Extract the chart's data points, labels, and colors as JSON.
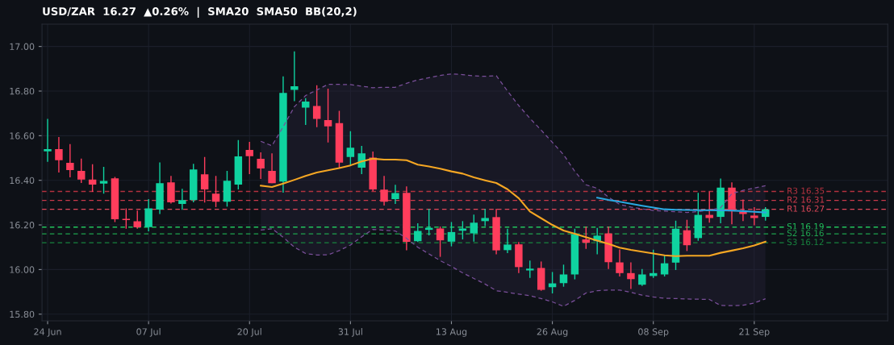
{
  "chart_data": {
    "type": "candlestick",
    "title": "USD/ZAR  16.27  ▲0.26%  |  SMA20  SMA50  BB(20,2)",
    "categories": [
      "24 Jun",
      null,
      null,
      null,
      null,
      null,
      null,
      null,
      null,
      "07 Jul",
      null,
      null,
      null,
      null,
      null,
      null,
      null,
      null,
      "20 Jul",
      null,
      null,
      null,
      null,
      null,
      null,
      null,
      null,
      "31 Jul",
      null,
      null,
      null,
      null,
      null,
      null,
      null,
      null,
      "13 Aug",
      null,
      null,
      null,
      null,
      null,
      null,
      null,
      null,
      "26 Aug",
      null,
      null,
      null,
      null,
      null,
      null,
      null,
      null,
      "08 Sep",
      null,
      null,
      null,
      null,
      null,
      null,
      null,
      null,
      "21 Sep",
      null
    ],
    "ohlc": [
      [
        16.53,
        16.675,
        16.483,
        16.54
      ],
      [
        16.54,
        16.594,
        16.435,
        16.49
      ],
      [
        16.478,
        16.562,
        16.413,
        16.446
      ],
      [
        16.442,
        16.497,
        16.388,
        16.403
      ],
      [
        16.403,
        16.472,
        16.348,
        16.381
      ],
      [
        16.385,
        16.46,
        16.34,
        16.397
      ],
      [
        16.409,
        16.415,
        16.213,
        16.225
      ],
      [
        16.227,
        16.274,
        16.183,
        16.222
      ],
      [
        16.216,
        16.264,
        16.183,
        16.189
      ],
      [
        16.19,
        16.316,
        16.171,
        16.274
      ],
      [
        16.269,
        16.48,
        16.249,
        16.387
      ],
      [
        16.391,
        16.42,
        16.296,
        16.301
      ],
      [
        16.294,
        16.362,
        16.268,
        16.311
      ],
      [
        16.311,
        16.474,
        16.301,
        16.449
      ],
      [
        16.427,
        16.505,
        16.3,
        16.359
      ],
      [
        16.34,
        16.42,
        16.28,
        16.304
      ],
      [
        16.304,
        16.442,
        16.282,
        16.398
      ],
      [
        16.381,
        16.58,
        16.359,
        16.507
      ],
      [
        16.536,
        16.572,
        16.428,
        16.508
      ],
      [
        16.496,
        16.525,
        16.406,
        16.453
      ],
      [
        16.442,
        16.521,
        16.387,
        16.387
      ],
      [
        16.394,
        16.866,
        16.345,
        16.792
      ],
      [
        16.805,
        16.978,
        16.755,
        16.822
      ],
      [
        16.726,
        16.768,
        16.648,
        16.753
      ],
      [
        16.733,
        16.826,
        16.638,
        16.675
      ],
      [
        16.67,
        16.811,
        16.57,
        16.642
      ],
      [
        16.656,
        16.711,
        16.455,
        16.479
      ],
      [
        16.505,
        16.62,
        16.465,
        16.546
      ],
      [
        16.457,
        16.554,
        16.428,
        16.521
      ],
      [
        16.502,
        16.529,
        16.352,
        16.359
      ],
      [
        16.358,
        16.42,
        16.287,
        16.304
      ],
      [
        16.316,
        16.38,
        16.294,
        16.343
      ],
      [
        16.344,
        16.373,
        16.086,
        16.124
      ],
      [
        16.127,
        16.207,
        16.123,
        16.173
      ],
      [
        16.178,
        16.272,
        16.153,
        16.187
      ],
      [
        16.184,
        16.193,
        16.057,
        16.131
      ],
      [
        16.125,
        16.213,
        16.104,
        16.168
      ],
      [
        16.174,
        16.217,
        16.135,
        16.184
      ],
      [
        16.162,
        16.246,
        16.125,
        16.21
      ],
      [
        16.217,
        16.272,
        16.195,
        16.231
      ],
      [
        16.235,
        16.272,
        16.068,
        16.086
      ],
      [
        16.087,
        16.183,
        16.074,
        16.112
      ],
      [
        16.113,
        16.123,
        15.984,
        16.011
      ],
      [
        15.996,
        16.04,
        15.963,
        16.004
      ],
      [
        16.007,
        16.036,
        15.905,
        15.909
      ],
      [
        15.921,
        15.989,
        15.893,
        15.938
      ],
      [
        15.939,
        16.022,
        15.923,
        15.978
      ],
      [
        15.978,
        16.183,
        15.956,
        16.159
      ],
      [
        16.135,
        16.193,
        16.093,
        16.12
      ],
      [
        16.127,
        16.187,
        16.068,
        16.152
      ],
      [
        16.162,
        16.193,
        16.002,
        16.033
      ],
      [
        16.032,
        16.09,
        15.969,
        15.984
      ],
      [
        15.984,
        16.032,
        15.913,
        15.957
      ],
      [
        15.932,
        16.002,
        15.926,
        15.978
      ],
      [
        15.971,
        16.089,
        15.963,
        15.984
      ],
      [
        15.978,
        16.066,
        15.969,
        16.028
      ],
      [
        16.031,
        16.219,
        15.998,
        16.183
      ],
      [
        16.176,
        16.223,
        16.083,
        16.109
      ],
      [
        16.141,
        16.344,
        16.129,
        16.245
      ],
      [
        16.245,
        16.35,
        16.21,
        16.231
      ],
      [
        16.236,
        16.408,
        16.207,
        16.367
      ],
      [
        16.367,
        16.391,
        16.203,
        16.261
      ],
      [
        16.259,
        16.314,
        16.217,
        16.249
      ],
      [
        16.242,
        16.28,
        16.198,
        16.231
      ],
      [
        16.236,
        16.28,
        16.219,
        16.27
      ]
    ],
    "colors": [
      "#0fd3a0",
      "#ff3d5c",
      "#ff3d5c",
      "#ff3d5c",
      "#ff3d5c",
      "#0fd3a0",
      "#ff3d5c",
      "#ff3d5c",
      "#ff3d5c",
      "#0fd3a0",
      "#0fd3a0",
      "#ff3d5c",
      "#0fd3a0",
      "#0fd3a0",
      "#ff3d5c",
      "#ff3d5c",
      "#0fd3a0",
      "#0fd3a0",
      "#ff3d5c",
      "#ff3d5c",
      "#ff3d5c",
      "#0fd3a0",
      "#0fd3a0",
      "#0fd3a0",
      "#ff3d5c",
      "#ff3d5c",
      "#ff3d5c",
      "#0fd3a0",
      "#0fd3a0",
      "#ff3d5c",
      "#ff3d5c",
      "#0fd3a0",
      "#ff3d5c",
      "#0fd3a0",
      "#0fd3a0",
      "#ff3d5c",
      "#0fd3a0",
      "#0fd3a0",
      "#0fd3a0",
      "#0fd3a0",
      "#ff3d5c",
      "#0fd3a0",
      "#ff3d5c",
      "#0fd3a0",
      "#ff3d5c",
      "#0fd3a0",
      "#0fd3a0",
      "#0fd3a0",
      "#ff3d5c",
      "#0fd3a0",
      "#ff3d5c",
      "#ff3d5c",
      "#ff3d5c",
      "#0fd3a0",
      "#0fd3a0",
      "#0fd3a0",
      "#0fd3a0",
      "#ff3d5c",
      "#0fd3a0",
      "#ff3d5c",
      "#0fd3a0",
      "#ff3d5c",
      "#ff3d5c",
      "#ff3d5c",
      "#0fd3a0"
    ],
    "series": [
      {
        "type": "line",
        "color": "#f5a623",
        "values": [
          null,
          null,
          null,
          null,
          null,
          null,
          null,
          null,
          null,
          null,
          null,
          null,
          null,
          null,
          null,
          null,
          null,
          null,
          null,
          16.376,
          16.37,
          16.385,
          16.402,
          16.42,
          16.435,
          16.445,
          16.455,
          16.467,
          16.485,
          16.497,
          16.493,
          16.493,
          16.49,
          16.47,
          16.462,
          16.452,
          16.44,
          16.43,
          16.413,
          16.4,
          16.388,
          16.36,
          16.32,
          16.26,
          16.23,
          16.2,
          16.175,
          16.16,
          16.145,
          16.13,
          16.115,
          16.098,
          16.088,
          16.08,
          16.072,
          16.064,
          16.06,
          16.062,
          16.062,
          16.062,
          16.075,
          16.085,
          16.095,
          16.108,
          16.125
        ],
        "upper": [
          null,
          null,
          null,
          null,
          null,
          null,
          null,
          null,
          null,
          null,
          null,
          null,
          null,
          null,
          null,
          null,
          null,
          null,
          null,
          16.575,
          16.555,
          16.64,
          16.73,
          16.78,
          16.805,
          16.83,
          16.83,
          16.829,
          16.822,
          16.815,
          16.817,
          16.817,
          16.835,
          16.85,
          16.86,
          16.87,
          16.877,
          16.874,
          16.868,
          16.866,
          16.869,
          16.8,
          16.735,
          16.678,
          16.625,
          16.57,
          16.515,
          16.44,
          16.38,
          16.364,
          16.325,
          16.292,
          16.28,
          16.272,
          16.265,
          16.262,
          16.259,
          16.256,
          16.26,
          16.266,
          16.277,
          16.34,
          16.355,
          16.365,
          16.376
        ],
        "lower": [
          null,
          null,
          null,
          null,
          null,
          null,
          null,
          null,
          null,
          null,
          null,
          null,
          null,
          null,
          null,
          null,
          null,
          null,
          null,
          16.177,
          16.183,
          16.145,
          16.1,
          16.072,
          16.065,
          16.066,
          16.085,
          16.11,
          16.147,
          16.18,
          16.176,
          16.173,
          16.14,
          16.1,
          16.07,
          16.04,
          16.014,
          15.985,
          15.96,
          15.935,
          15.905,
          15.898,
          15.89,
          15.883,
          15.87,
          15.855,
          15.835,
          15.862,
          15.895,
          15.905,
          15.908,
          15.908,
          15.898,
          15.885,
          15.877,
          15.871,
          15.87,
          15.868,
          15.867,
          15.866,
          15.839,
          15.838,
          15.84,
          15.85,
          15.869
        ]
      },
      {
        "type": "line",
        "color": "#7a4f9a",
        "line_style": "dashed",
        "values": [
          null,
          null,
          null,
          null,
          null,
          null,
          null,
          null,
          null,
          null,
          null,
          null,
          null,
          null,
          null,
          null,
          null,
          null,
          null,
          16.575,
          16.555,
          16.64,
          16.73,
          16.78,
          16.805,
          16.83,
          16.83,
          16.829,
          16.822,
          16.815,
          16.817,
          16.817,
          16.835,
          16.85,
          16.86,
          16.87,
          16.877,
          16.874,
          16.868,
          16.866,
          16.869,
          16.8,
          16.735,
          16.678,
          16.625,
          16.57,
          16.515,
          16.44,
          16.38,
          16.364,
          16.325,
          16.292,
          16.28,
          16.272,
          16.265,
          16.262,
          16.259,
          16.256,
          16.26,
          16.266,
          16.277,
          16.34,
          16.355,
          16.365,
          16.376
        ]
      },
      {
        "type": "line",
        "color": "#7a4f9a",
        "line_style": "dashed",
        "values": [
          null,
          null,
          null,
          null,
          null,
          null,
          null,
          null,
          null,
          null,
          null,
          null,
          null,
          null,
          null,
          null,
          null,
          null,
          null,
          16.177,
          16.183,
          16.145,
          16.1,
          16.072,
          16.065,
          16.066,
          16.085,
          16.11,
          16.147,
          16.18,
          16.176,
          16.173,
          16.14,
          16.1,
          16.07,
          16.04,
          16.014,
          15.985,
          15.96,
          15.935,
          15.905,
          15.898,
          15.89,
          15.883,
          15.87,
          15.855,
          15.835,
          15.862,
          15.895,
          15.905,
          15.908,
          15.908,
          15.898,
          15.885,
          15.877,
          15.871,
          15.87,
          15.868,
          15.867,
          15.866,
          15.839,
          15.838,
          15.84,
          15.85,
          15.869
        ]
      },
      {
        "type": "line",
        "color": "#29a8e0",
        "values": [
          null,
          null,
          null,
          null,
          null,
          null,
          null,
          null,
          null,
          null,
          null,
          null,
          null,
          null,
          null,
          null,
          null,
          null,
          null,
          null,
          null,
          null,
          null,
          null,
          null,
          null,
          null,
          null,
          null,
          null,
          null,
          null,
          null,
          null,
          null,
          null,
          null,
          null,
          null,
          null,
          null,
          null,
          null,
          null,
          null,
          null,
          null,
          null,
          null,
          16.322,
          16.312,
          16.304,
          16.295,
          16.286,
          16.278,
          16.27,
          16.268,
          16.267,
          16.266,
          16.266,
          16.265,
          16.264,
          16.262,
          16.259,
          16.256
        ]
      }
    ],
    "ref_lines": [
      {
        "axis": "y",
        "value": 16.35,
        "label": "R3 16.35",
        "color": "#b3323f",
        "line_style": "dashed"
      },
      {
        "axis": "y",
        "value": 16.31,
        "label": "R2 16.31",
        "color": "#c8394a",
        "line_style": "dashed"
      },
      {
        "axis": "y",
        "value": 16.27,
        "label": "R1 16.27",
        "color": "#e0485a",
        "line_style": "dashed"
      },
      {
        "axis": "y",
        "value": 16.19,
        "label": "S1 16.19",
        "color": "#22c55e",
        "line_style": "dashed"
      },
      {
        "axis": "y",
        "value": 16.16,
        "label": "S2 16.16",
        "color": "#1fa34f",
        "line_style": "dashed"
      },
      {
        "axis": "y",
        "value": 16.12,
        "label": "S3 16.12",
        "color": "#17843f",
        "line_style": "dashed"
      }
    ],
    "ylim": [
      15.77,
      17.1
    ],
    "yticks": [
      {
        "value": 15.8,
        "label": "15.80"
      },
      {
        "value": 16.0,
        "label": "16.00"
      },
      {
        "value": 16.2,
        "label": "16.20"
      },
      {
        "value": 16.4,
        "label": "16.40"
      },
      {
        "value": 16.6,
        "label": "16.60"
      },
      {
        "value": 16.8,
        "label": "16.80"
      },
      {
        "value": 17.0,
        "label": "17.00"
      }
    ],
    "grid": true,
    "legend": false
  }
}
